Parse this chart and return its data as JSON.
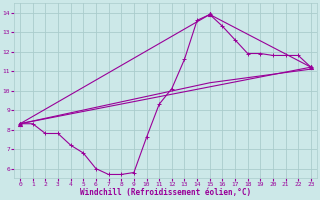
{
  "background_color": "#cce8e8",
  "grid_color": "#aacccc",
  "line_color": "#990099",
  "xlabel": "Windchill (Refroidissement éolien,°C)",
  "ylim": [
    5.5,
    14.5
  ],
  "xlim": [
    -0.5,
    23.5
  ],
  "yticks": [
    6,
    7,
    8,
    9,
    10,
    11,
    12,
    13,
    14
  ],
  "xticks": [
    0,
    1,
    2,
    3,
    4,
    5,
    6,
    7,
    8,
    9,
    10,
    11,
    12,
    13,
    14,
    15,
    16,
    17,
    18,
    19,
    20,
    21,
    22,
    23
  ],
  "series": [
    {
      "x": [
        0,
        1,
        2,
        3,
        4,
        5,
        6,
        7,
        8,
        9,
        10,
        11,
        12,
        13,
        14,
        15,
        16,
        17,
        18,
        19,
        20,
        21,
        22,
        23
      ],
      "y": [
        8.3,
        8.3,
        7.8,
        7.8,
        7.2,
        6.8,
        6.0,
        5.7,
        5.7,
        5.8,
        7.6,
        9.3,
        10.1,
        11.6,
        13.6,
        13.9,
        13.3,
        12.6,
        11.9,
        11.9,
        11.8,
        11.8,
        11.8,
        11.2
      ],
      "marker": "+"
    },
    {
      "x": [
        0,
        23
      ],
      "y": [
        8.3,
        11.2
      ],
      "marker": null
    },
    {
      "x": [
        0,
        15,
        23
      ],
      "y": [
        8.3,
        10.4,
        11.1
      ],
      "marker": null
    },
    {
      "x": [
        0,
        15,
        23
      ],
      "y": [
        8.3,
        13.9,
        11.2
      ],
      "marker": "^"
    }
  ]
}
